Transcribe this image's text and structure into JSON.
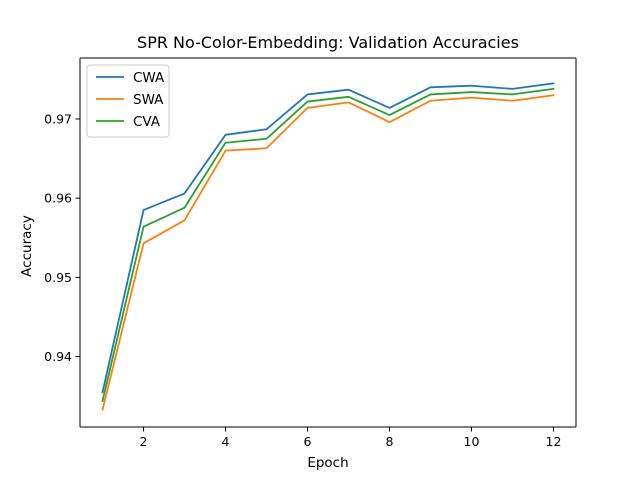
{
  "chart_data": {
    "type": "line",
    "title": "SPR No-Color-Embedding: Validation Accuracies",
    "xlabel": "Epoch",
    "ylabel": "Accuracy",
    "x": [
      1,
      2,
      3,
      4,
      5,
      6,
      7,
      8,
      9,
      10,
      11,
      12
    ],
    "xlim": [
      0.45,
      12.55
    ],
    "ylim": [
      0.9311,
      0.9777
    ],
    "xticks": [
      2,
      4,
      6,
      8,
      10,
      12
    ],
    "yticks": [
      0.94,
      0.95,
      0.96,
      0.97
    ],
    "xtick_labels": [
      "2",
      "4",
      "6",
      "8",
      "10",
      "12"
    ],
    "ytick_labels": [
      "0.94",
      "0.95",
      "0.96",
      "0.97"
    ],
    "grid": false,
    "legend_position": "top-left",
    "series": [
      {
        "name": "CWA",
        "color": "#1f77b4",
        "values": [
          0.9355,
          0.9585,
          0.9606,
          0.968,
          0.9687,
          0.9731,
          0.9737,
          0.9714,
          0.974,
          0.9742,
          0.9738,
          0.9745
        ]
      },
      {
        "name": "SWA",
        "color": "#ff7f0e",
        "values": [
          0.9333,
          0.9543,
          0.9572,
          0.966,
          0.9663,
          0.9714,
          0.9721,
          0.9696,
          0.9723,
          0.9727,
          0.9723,
          0.973
        ]
      },
      {
        "name": "CVA",
        "color": "#2ca02c",
        "values": [
          0.9344,
          0.9564,
          0.9588,
          0.967,
          0.9675,
          0.9722,
          0.9728,
          0.9705,
          0.9731,
          0.9734,
          0.9731,
          0.9738
        ]
      }
    ]
  }
}
